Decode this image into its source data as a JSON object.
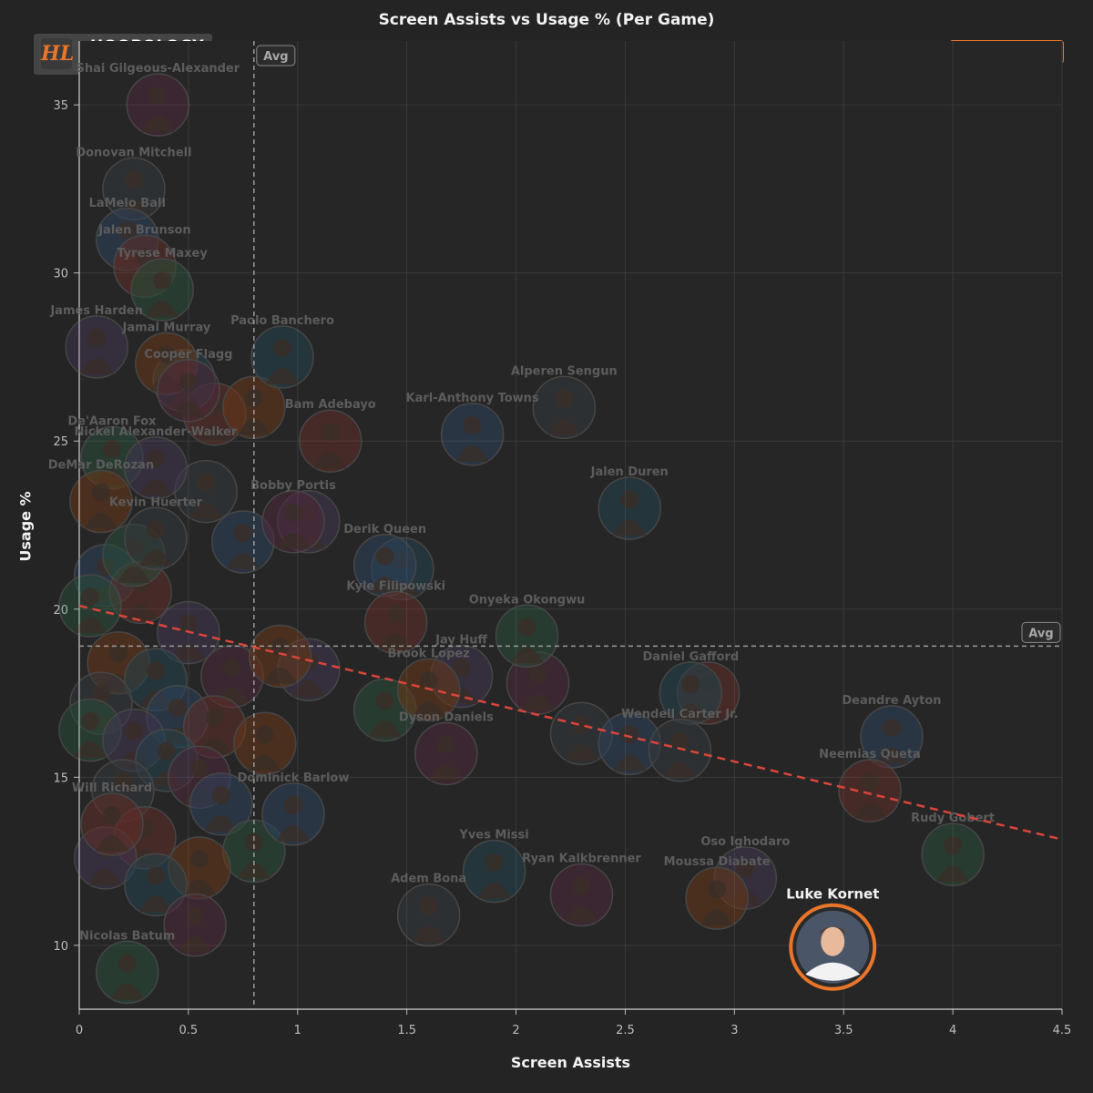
{
  "chart_data": {
    "type": "scatter",
    "title": "Screen Assists vs Usage % (Per Game)",
    "xlabel": "Screen Assists",
    "ylabel": "Usage %",
    "xlim": [
      0,
      4.5
    ],
    "ylim": [
      8.1,
      36.9
    ],
    "x_ticks": [
      "0",
      "0.5",
      "1",
      "1.5",
      "2",
      "2.5",
      "3",
      "3.5",
      "4",
      "4.5"
    ],
    "y_ticks": [
      "10",
      "15",
      "20",
      "25",
      "30",
      "35"
    ],
    "grid": true,
    "avg_label": "Avg",
    "avg_x": 0.8,
    "avg_y": 18.9,
    "trendline": {
      "x": [
        0,
        4.5
      ],
      "y": [
        20.1,
        13.15
      ],
      "color": "#d9453b"
    },
    "highlight_color": "#e8752a",
    "highlight": {
      "name": "Luke Kornet",
      "x": 3.45,
      "y": 9.95
    },
    "labeled_players": [
      {
        "name": "Shai Gilgeous-Alexander",
        "x": 0.36,
        "y": 35.0
      },
      {
        "name": "Donovan Mitchell",
        "x": 0.25,
        "y": 32.5
      },
      {
        "name": "LaMelo Ball",
        "x": 0.22,
        "y": 31.0
      },
      {
        "name": "Jalen Brunson",
        "x": 0.3,
        "y": 30.2
      },
      {
        "name": "Tyrese Maxey",
        "x": 0.38,
        "y": 29.5
      },
      {
        "name": "James Harden",
        "x": 0.08,
        "y": 27.8
      },
      {
        "name": "Jamal Murray",
        "x": 0.4,
        "y": 27.3
      },
      {
        "name": "Paolo Banchero",
        "x": 0.93,
        "y": 27.5
      },
      {
        "name": "Cooper Flagg",
        "x": 0.5,
        "y": 26.5
      },
      {
        "name": "Alperen Sengun",
        "x": 2.22,
        "y": 26.0
      },
      {
        "name": "Karl-Anthony Towns",
        "x": 1.8,
        "y": 25.2
      },
      {
        "name": "Bam Adebayo",
        "x": 1.15,
        "y": 25.0
      },
      {
        "name": "De'Aaron Fox",
        "x": 0.15,
        "y": 24.5
      },
      {
        "name": "Nickel Alexander-Walker",
        "x": 0.35,
        "y": 24.2
      },
      {
        "name": "DeMar DeRozan",
        "x": 0.1,
        "y": 23.2
      },
      {
        "name": "Jalen Duren",
        "x": 2.52,
        "y": 23.0
      },
      {
        "name": "Bobby Portis",
        "x": 0.98,
        "y": 22.6
      },
      {
        "name": "Kevin Huerter",
        "x": 0.35,
        "y": 22.1
      },
      {
        "name": "Derik Queen",
        "x": 1.4,
        "y": 21.3
      },
      {
        "name": "Kyle Filipowski",
        "x": 1.45,
        "y": 19.6
      },
      {
        "name": "Onyeka Okongwu",
        "x": 2.05,
        "y": 19.2
      },
      {
        "name": "Jay Huff",
        "x": 1.75,
        "y": 18.0
      },
      {
        "name": "Brook Lopez",
        "x": 1.6,
        "y": 17.6
      },
      {
        "name": "Daniel Gafford",
        "x": 2.8,
        "y": 17.5
      },
      {
        "name": "Dyson Daniels",
        "x": 1.68,
        "y": 15.7
      },
      {
        "name": "Wendell Carter Jr.",
        "x": 2.75,
        "y": 15.8
      },
      {
        "name": "Deandre Ayton",
        "x": 3.72,
        "y": 16.2
      },
      {
        "name": "Neemias Queta",
        "x": 3.62,
        "y": 14.6
      },
      {
        "name": "Rudy Gobert",
        "x": 4.0,
        "y": 12.7
      },
      {
        "name": "Oso Ighodaro",
        "x": 3.05,
        "y": 12.0
      },
      {
        "name": "Moussa Diabate",
        "x": 2.92,
        "y": 11.4
      },
      {
        "name": "Yves Missi",
        "x": 1.9,
        "y": 12.2
      },
      {
        "name": "Ryan Kalkbrenner",
        "x": 2.3,
        "y": 11.5
      },
      {
        "name": "Adem Bona",
        "x": 1.6,
        "y": 10.9
      },
      {
        "name": "Dominick Barlow",
        "x": 0.98,
        "y": 13.9
      },
      {
        "name": "Will Richard",
        "x": 0.15,
        "y": 13.6
      },
      {
        "name": "Nicolas Batum",
        "x": 0.22,
        "y": 9.2
      }
    ],
    "other_players": [
      {
        "x": 0.12,
        "y": 21.0
      },
      {
        "x": 0.28,
        "y": 20.5
      },
      {
        "x": 0.05,
        "y": 20.1
      },
      {
        "x": 0.5,
        "y": 19.3
      },
      {
        "x": 0.18,
        "y": 18.4
      },
      {
        "x": 0.35,
        "y": 17.9
      },
      {
        "x": 0.7,
        "y": 18.0
      },
      {
        "x": 0.1,
        "y": 17.2
      },
      {
        "x": 0.45,
        "y": 16.8
      },
      {
        "x": 0.62,
        "y": 16.5
      },
      {
        "x": 0.05,
        "y": 16.4
      },
      {
        "x": 0.25,
        "y": 16.1
      },
      {
        "x": 0.85,
        "y": 16.0
      },
      {
        "x": 0.4,
        "y": 15.5
      },
      {
        "x": 0.55,
        "y": 15.0
      },
      {
        "x": 0.2,
        "y": 14.6
      },
      {
        "x": 0.65,
        "y": 14.2
      },
      {
        "x": 0.3,
        "y": 13.2
      },
      {
        "x": 0.8,
        "y": 12.8
      },
      {
        "x": 0.12,
        "y": 12.6
      },
      {
        "x": 0.55,
        "y": 12.3
      },
      {
        "x": 0.35,
        "y": 11.8
      },
      {
        "x": 0.53,
        "y": 10.6
      },
      {
        "x": 0.58,
        "y": 23.5
      },
      {
        "x": 0.75,
        "y": 22.0
      },
      {
        "x": 0.62,
        "y": 25.8
      },
      {
        "x": 0.25,
        "y": 21.6
      },
      {
        "x": 1.05,
        "y": 18.2
      },
      {
        "x": 0.92,
        "y": 18.6
      },
      {
        "x": 1.48,
        "y": 21.2
      },
      {
        "x": 2.1,
        "y": 17.8
      },
      {
        "x": 2.3,
        "y": 16.3
      },
      {
        "x": 2.52,
        "y": 16.0
      },
      {
        "x": 2.88,
        "y": 17.5
      },
      {
        "x": 1.4,
        "y": 17.0
      },
      {
        "x": 1.05,
        "y": 22.6
      },
      {
        "x": 0.8,
        "y": 26.0
      },
      {
        "x": 0.48,
        "y": 26.8
      }
    ]
  }
}
